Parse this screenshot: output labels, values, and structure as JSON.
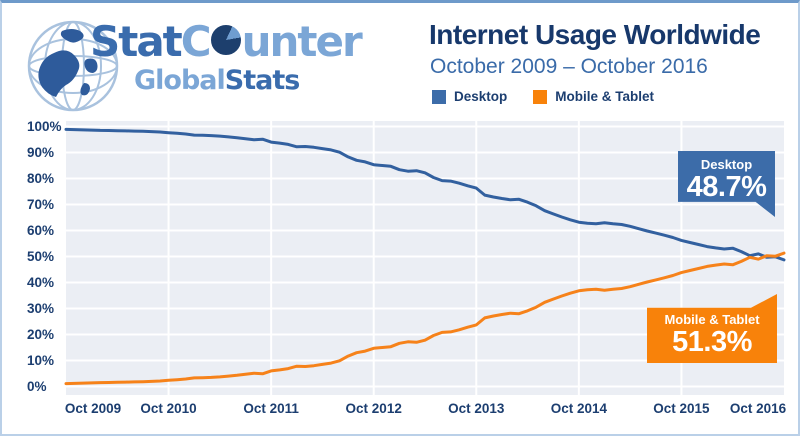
{
  "logo": {
    "line1_part1": "Stat",
    "line1_part2": "C",
    "line1_part3": "unter",
    "line2_part1": "Global",
    "line2_part2": "Stats"
  },
  "header": {
    "title": "Internet Usage Worldwide",
    "subtitle": "October 2009 – October 2016"
  },
  "legend": [
    {
      "label": "Desktop",
      "color": "#3c6ca9"
    },
    {
      "label": "Mobile & Tablet",
      "color": "#f8820a"
    }
  ],
  "callouts": {
    "desktop": {
      "label": "Desktop",
      "value": "48.7%"
    },
    "mobile": {
      "label": "Mobile & Tablet",
      "value": "51.3%"
    }
  },
  "colors": {
    "desktop_accent": "#3c6ca9",
    "mobile_accent": "#f8820a",
    "desktop_line": "#32609f",
    "mobile_line": "#f6821a",
    "plot_background": "#ebeef4",
    "gridline": "#ffffff",
    "axis_text": "#1c3e70",
    "title_text": "#17386b",
    "subtitle_text": "#3a6ba9"
  },
  "chart_data": {
    "type": "line",
    "title": "Internet Usage Worldwide",
    "subtitle": "October 2009 – October 2016",
    "x": {
      "start": "Oct 2009",
      "end": "Oct 2016",
      "interval": "month",
      "points": 85
    },
    "x_tick_labels": [
      "Oct 2009",
      "Oct 2010",
      "Oct 2011",
      "Oct 2012",
      "Oct 2013",
      "Oct 2014",
      "Oct 2015",
      "Oct 2016"
    ],
    "y_tick_labels": [
      "0%",
      "10%",
      "20%",
      "30%",
      "40%",
      "50%",
      "60%",
      "70%",
      "80%",
      "90%",
      "100%"
    ],
    "ylim": [
      0,
      100
    ],
    "grid": true,
    "legend_position": "top",
    "series": [
      {
        "name": "Desktop",
        "color": "#32609f",
        "final_label": "48.7%",
        "values": [
          98.9,
          98.8,
          98.7,
          98.6,
          98.5,
          98.45,
          98.4,
          98.3,
          98.25,
          98.15,
          98.05,
          97.9,
          97.6,
          97.4,
          97.1,
          96.7,
          96.6,
          96.5,
          96.3,
          96.0,
          95.7,
          95.3,
          94.9,
          95.1,
          94.0,
          93.6,
          93.1,
          92.2,
          92.3,
          92.0,
          91.5,
          91.0,
          90.1,
          88.3,
          87.0,
          86.4,
          85.3,
          85.0,
          84.7,
          83.4,
          82.8,
          83.0,
          82.2,
          80.4,
          79.2,
          79.0,
          78.2,
          77.2,
          76.3,
          73.6,
          72.9,
          72.3,
          71.8,
          72.0,
          70.9,
          69.5,
          67.6,
          66.4,
          65.2,
          64.1,
          63.2,
          62.8,
          62.6,
          63.0,
          62.6,
          62.3,
          61.6,
          60.7,
          59.8,
          59.0,
          58.2,
          57.3,
          56.2,
          55.4,
          54.6,
          53.8,
          53.3,
          52.9,
          53.2,
          51.9,
          50.3,
          51.0,
          49.7,
          49.9,
          48.7
        ]
      },
      {
        "name": "Mobile & Tablet",
        "color": "#f6821a",
        "final_label": "51.3%",
        "values": [
          1.1,
          1.2,
          1.3,
          1.4,
          1.5,
          1.55,
          1.6,
          1.7,
          1.75,
          1.85,
          1.95,
          2.1,
          2.4,
          2.6,
          2.9,
          3.3,
          3.4,
          3.5,
          3.7,
          4.0,
          4.3,
          4.7,
          5.1,
          4.9,
          6.0,
          6.4,
          6.9,
          7.8,
          7.7,
          8.0,
          8.5,
          9.0,
          9.9,
          11.7,
          13.0,
          13.6,
          14.7,
          15.0,
          15.3,
          16.6,
          17.2,
          17.0,
          17.8,
          19.6,
          20.8,
          21.0,
          21.8,
          22.8,
          23.7,
          26.4,
          27.1,
          27.7,
          28.2,
          28.0,
          29.1,
          30.5,
          32.4,
          33.6,
          34.8,
          35.9,
          36.8,
          37.2,
          37.4,
          37.0,
          37.4,
          37.7,
          38.4,
          39.3,
          40.2,
          41.0,
          41.8,
          42.7,
          43.8,
          44.6,
          45.4,
          46.2,
          46.7,
          47.1,
          46.8,
          48.1,
          49.7,
          49.0,
          50.3,
          50.1,
          51.3
        ]
      }
    ]
  }
}
